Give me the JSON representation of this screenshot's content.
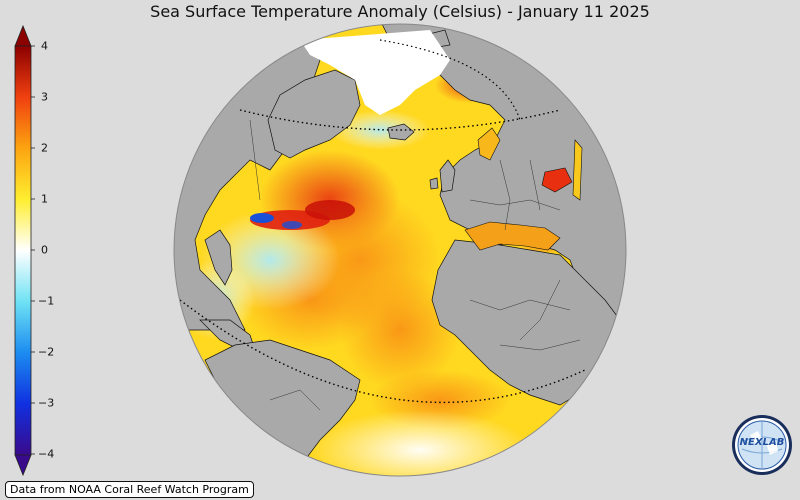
{
  "title": "Sea Surface Temperature Anomaly (Celsius) - January 11 2025",
  "colorbar": {
    "ticks": [
      "4",
      "3",
      "2",
      "1",
      "0",
      "−1",
      "−2",
      "−3",
      "−4"
    ],
    "min": -4,
    "max": 4,
    "colors": [
      "#3a0a8c",
      "#1030e0",
      "#1c8cf0",
      "#6fe2f4",
      "#ffffff",
      "#ffee30",
      "#fca410",
      "#f04010",
      "#8c0000"
    ]
  },
  "map": {
    "projection": "orthographic",
    "ocean_colors": {
      "cold": "#1850d8",
      "neutral": "#ffffff",
      "warm": "#ffd820",
      "hot": "#e83010"
    },
    "land_color": "#a9a9a9"
  },
  "credit": "Data from NOAA Coral Reef Watch Program",
  "logo": {
    "text": "NEXLAB",
    "icon": "nexlab-globe-icon"
  }
}
